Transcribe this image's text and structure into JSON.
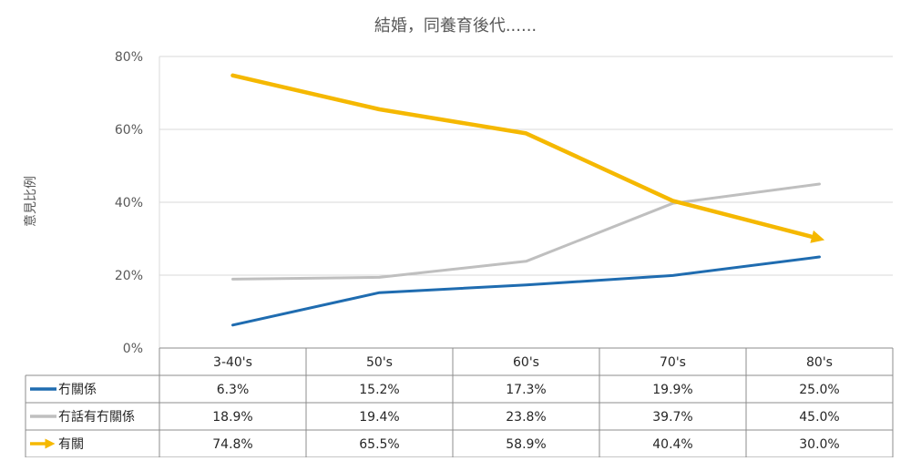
{
  "chart_data": {
    "type": "line",
    "title": "結婚，同養育後代......",
    "ylabel": "意見比例",
    "xlabel": "",
    "ylim": [
      0,
      80
    ],
    "yticks": [
      0,
      20,
      40,
      60,
      80
    ],
    "ytick_labels": [
      "0%",
      "20%",
      "40%",
      "60%",
      "80%"
    ],
    "grid": true,
    "legend": "data-table",
    "categories": [
      "3-40's",
      "50's",
      "60's",
      "70's",
      "80's"
    ],
    "series": [
      {
        "name": "冇關係",
        "color": "#1f6cb0",
        "values": [
          6.3,
          15.2,
          17.3,
          19.9,
          25.0
        ],
        "labels": [
          "6.3%",
          "15.2%",
          "17.3%",
          "19.9%",
          "25.0%"
        ],
        "arrow": false
      },
      {
        "name": "冇話有冇關係",
        "color": "#bfbfbf",
        "values": [
          18.9,
          19.4,
          23.8,
          39.7,
          45.0
        ],
        "labels": [
          "18.9%",
          "19.4%",
          "23.8%",
          "39.7%",
          "45.0%"
        ],
        "arrow": false
      },
      {
        "name": "有關",
        "color": "#f5b800",
        "values": [
          74.8,
          65.5,
          58.9,
          40.4,
          30.0
        ],
        "labels": [
          "74.8%",
          "65.5%",
          "58.9%",
          "40.4%",
          "30.0%"
        ],
        "arrow": true
      }
    ]
  }
}
